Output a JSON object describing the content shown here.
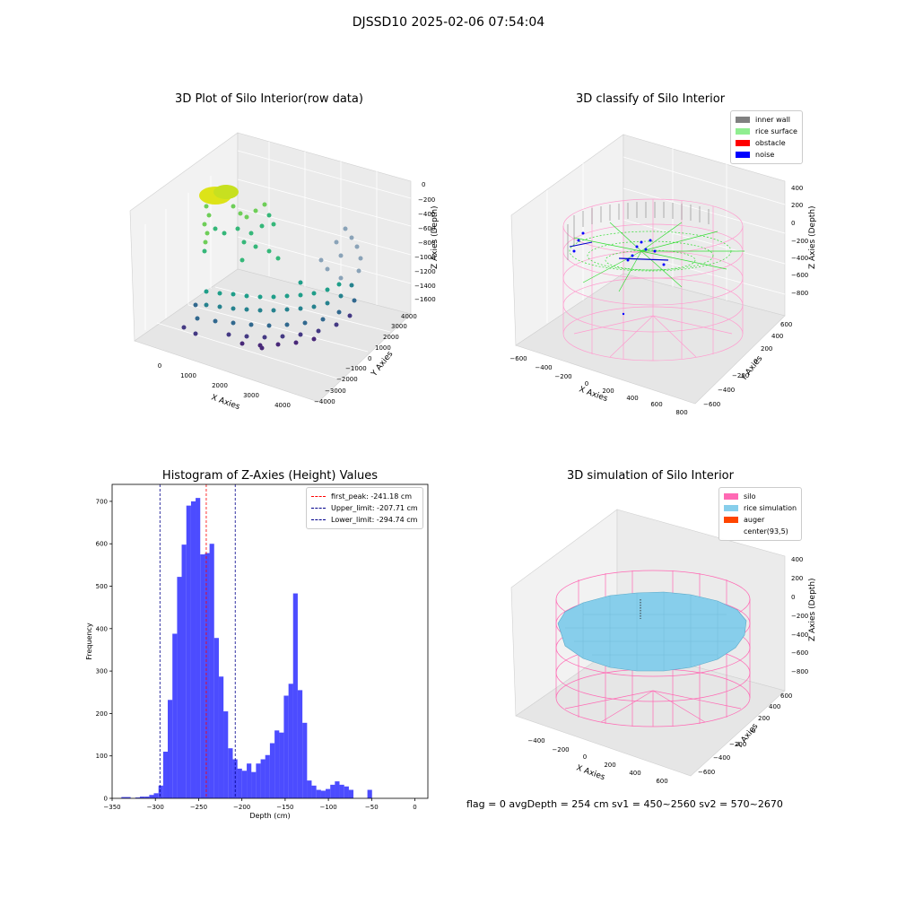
{
  "suptitle": "DJSSD10 2025-02-06 07:54:04",
  "plot1": {
    "title": "3D Plot of Silo Interior(row data)",
    "xlabel": "X Axies",
    "ylabel": "Y Axies",
    "zlabel": "Z Axies (Depth)",
    "xticks": [
      "0",
      "1000",
      "2000",
      "3000",
      "4000"
    ],
    "yticks": [
      "−4000",
      "−3000",
      "−2000",
      "−1000",
      "0",
      "1000",
      "2000",
      "3000",
      "4000"
    ],
    "zticks": [
      "0",
      "−200",
      "−400",
      "−600",
      "−800",
      "−1000",
      "−1200",
      "−1400",
      "−1600"
    ]
  },
  "plot2": {
    "title": "3D classify of Silo Interior",
    "xlabel": "X Axies",
    "ylabel": "Y Axies",
    "zlabel": "Z Axies (Depth)",
    "xticks": [
      "−600",
      "−400",
      "−200",
      "0",
      "200",
      "400",
      "600",
      "800"
    ],
    "yticks": [
      "−600",
      "−400",
      "−200",
      "0",
      "200",
      "400",
      "600"
    ],
    "zticks": [
      "400",
      "200",
      "0",
      "−200",
      "−400",
      "−600",
      "−800"
    ],
    "legend": [
      {
        "label": "inner wall",
        "color": "#808080"
      },
      {
        "label": "rice surface",
        "color": "#90ee90"
      },
      {
        "label": "obstacle",
        "color": "#ff0000"
      },
      {
        "label": "noise",
        "color": "#0000ff"
      }
    ]
  },
  "plot4": {
    "title": "3D simulation of Silo Interior",
    "xlabel": "X Axies",
    "ylabel": "Y Axies",
    "zlabel": "Z Axies (Depth)",
    "xticks": [
      "−400",
      "−200",
      "0",
      "200",
      "400",
      "600"
    ],
    "yticks": [
      "−600",
      "−400",
      "−200",
      "0",
      "200",
      "400",
      "600"
    ],
    "zticks": [
      "400",
      "200",
      "0",
      "−200",
      "−400",
      "−600",
      "−800"
    ],
    "legend": [
      {
        "label": "silo",
        "color": "#ff69b4"
      },
      {
        "label": "rice simulation",
        "color": "#87ceeb"
      },
      {
        "label": "auger",
        "color": "#ff4500"
      },
      {
        "label": "center(93,5)",
        "color": ""
      }
    ]
  },
  "status": "flag = 0     avgDepth = 254 cm  sv1 = 450~2560  sv2 = 570~2670",
  "chart_data": [
    {
      "type": "histogram",
      "title": "Histogram of Z-Axies (Height) Values",
      "xlabel": "Depth (cm)",
      "ylabel": "Frequency",
      "xlim": [
        -350,
        15
      ],
      "ylim": [
        0,
        740
      ],
      "xticks": [
        -350,
        -300,
        -250,
        -200,
        -150,
        -100,
        -50,
        0
      ],
      "yticks": [
        0,
        100,
        200,
        300,
        400,
        500,
        600,
        700
      ],
      "bar_color": "#0000ff",
      "bins": {
        "left_edges": [
          -339.3,
          -334.0,
          -328.6,
          -323.2,
          -317.9,
          -312.5,
          -307.1,
          -301.8,
          -296.4,
          -291.0,
          -285.7,
          -280.3,
          -274.9,
          -269.6,
          -264.2,
          -258.8,
          -253.5,
          -248.1,
          -242.7,
          -237.4,
          -232.0,
          -226.6,
          -221.3,
          -215.9,
          -210.5,
          -205.2,
          -199.8,
          -194.4,
          -189.1,
          -183.7,
          -178.3,
          -173.0,
          -167.6,
          -162.2,
          -156.9,
          -151.5,
          -146.1,
          -140.8,
          -135.4,
          -130.0,
          -124.7,
          -119.3,
          -113.9,
          -108.6,
          -103.2,
          -97.8,
          -92.5,
          -87.1,
          -81.7,
          -76.4,
          -71.0,
          -65.6,
          -60.3,
          -54.9,
          -49.5,
          -44.2,
          -38.8,
          -33.4,
          -28.1,
          -22.7,
          -17.3,
          -12.0,
          -6.6,
          -1.2
        ],
        "width": 5.37,
        "counts": [
          3,
          3,
          0,
          2,
          4,
          4,
          8,
          12,
          30,
          110,
          232,
          388,
          522,
          598,
          690,
          700,
          708,
          575,
          578,
          600,
          378,
          287,
          205,
          118,
          92,
          70,
          65,
          82,
          62,
          82,
          92,
          102,
          130,
          160,
          155,
          242,
          270,
          483,
          255,
          178,
          42,
          30,
          20,
          18,
          22,
          32,
          40,
          32,
          28,
          20,
          0,
          0,
          0,
          20,
          0,
          0,
          0,
          0,
          0,
          0,
          0,
          0,
          0,
          0
        ]
      },
      "lines": [
        {
          "label": "first_peak: -241.18 cm",
          "x": -241.18,
          "color": "#ff0000"
        },
        {
          "label": "Upper_limit: -207.71 cm",
          "x": -207.71,
          "color": "#00008b"
        },
        {
          "label": "Lower_limit: -294.74 cm",
          "x": -294.74,
          "color": "#00008b"
        }
      ],
      "legend_position": "top-right"
    }
  ]
}
